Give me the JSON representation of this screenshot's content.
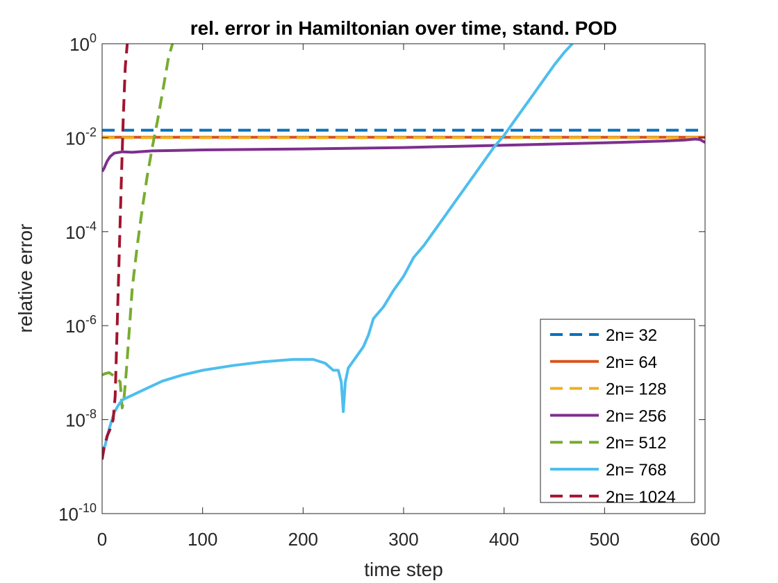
{
  "chart_data": {
    "type": "line",
    "title": "rel. error in Hamiltonian over time, stand. POD",
    "xlabel": "time step",
    "ylabel": "relative error",
    "xlim": [
      0,
      600
    ],
    "ylim_log10": [
      -10,
      0
    ],
    "yscale": "log",
    "grid": false,
    "legend_location": "bottom-right",
    "xticks": [
      {
        "value": 0,
        "label": "0"
      },
      {
        "value": 100,
        "label": "100"
      },
      {
        "value": 200,
        "label": "200"
      },
      {
        "value": 300,
        "label": "300"
      },
      {
        "value": 400,
        "label": "400"
      },
      {
        "value": 500,
        "label": "500"
      },
      {
        "value": 600,
        "label": "600"
      }
    ],
    "yticks": [
      {
        "exp": 0,
        "base": "10",
        "sup": "0"
      },
      {
        "exp": -2,
        "base": "10",
        "sup": "-2"
      },
      {
        "exp": -4,
        "base": "10",
        "sup": "-4"
      },
      {
        "exp": -6,
        "base": "10",
        "sup": "-6"
      },
      {
        "exp": -8,
        "base": "10",
        "sup": "-8"
      },
      {
        "exp": -10,
        "base": "10",
        "sup": "-10"
      }
    ],
    "series": [
      {
        "name": "2n= 32",
        "color": "#0072BD",
        "dash": true,
        "points": [
          [
            0,
            -1.84
          ],
          [
            600,
            -1.84
          ]
        ]
      },
      {
        "name": "2n= 64",
        "color": "#D95319",
        "dash": false,
        "points": [
          [
            0,
            -1.99
          ],
          [
            600,
            -1.99
          ]
        ]
      },
      {
        "name": "2n= 128",
        "color": "#EDB120",
        "dash": true,
        "points": [
          [
            0,
            -2.0
          ],
          [
            600,
            -2.0
          ]
        ]
      },
      {
        "name": "2n= 256",
        "color": "#7E2F8E",
        "dash": false,
        "points": [
          [
            0,
            -2.72
          ],
          [
            2,
            -2.65
          ],
          [
            5,
            -2.5
          ],
          [
            8,
            -2.4
          ],
          [
            12,
            -2.33
          ],
          [
            20,
            -2.3
          ],
          [
            30,
            -2.31
          ],
          [
            50,
            -2.28
          ],
          [
            100,
            -2.26
          ],
          [
            200,
            -2.24
          ],
          [
            300,
            -2.21
          ],
          [
            400,
            -2.16
          ],
          [
            500,
            -2.11
          ],
          [
            560,
            -2.07
          ],
          [
            580,
            -2.05
          ],
          [
            590,
            -2.03
          ],
          [
            595,
            -2.04
          ],
          [
            600,
            -2.1
          ]
        ]
      },
      {
        "name": "2n= 512",
        "color": "#77AC30",
        "dash": true,
        "points": [
          [
            0,
            -7.05
          ],
          [
            3,
            -7.02
          ],
          [
            7,
            -7.0
          ],
          [
            9,
            -7.03
          ],
          [
            14,
            -7.1
          ],
          [
            18,
            -7.2
          ],
          [
            20,
            -7.75
          ],
          [
            22,
            -7.5
          ],
          [
            24,
            -7.0
          ],
          [
            27,
            -6.1
          ],
          [
            30,
            -5.2
          ],
          [
            35,
            -4.3
          ],
          [
            40,
            -3.5
          ],
          [
            45,
            -2.8
          ],
          [
            50,
            -2.2
          ],
          [
            55,
            -1.65
          ],
          [
            60,
            -1.05
          ],
          [
            66,
            -0.3
          ],
          [
            70,
            0.0
          ]
        ]
      },
      {
        "name": "2n= 768",
        "color": "#4DBEEE",
        "dash": false,
        "points": [
          [
            0,
            -8.65
          ],
          [
            3,
            -8.55
          ],
          [
            7,
            -8.2
          ],
          [
            12,
            -7.85
          ],
          [
            16,
            -7.7
          ],
          [
            20,
            -7.58
          ],
          [
            30,
            -7.48
          ],
          [
            40,
            -7.38
          ],
          [
            60,
            -7.18
          ],
          [
            80,
            -7.05
          ],
          [
            100,
            -6.95
          ],
          [
            130,
            -6.85
          ],
          [
            160,
            -6.77
          ],
          [
            190,
            -6.72
          ],
          [
            210,
            -6.72
          ],
          [
            222,
            -6.8
          ],
          [
            230,
            -6.95
          ],
          [
            235,
            -6.95
          ],
          [
            238,
            -7.2
          ],
          [
            240,
            -7.83
          ],
          [
            242,
            -7.2
          ],
          [
            245,
            -6.9
          ],
          [
            250,
            -6.75
          ],
          [
            255,
            -6.6
          ],
          [
            260,
            -6.45
          ],
          [
            265,
            -6.2
          ],
          [
            270,
            -5.85
          ],
          [
            280,
            -5.6
          ],
          [
            290,
            -5.25
          ],
          [
            300,
            -4.95
          ],
          [
            310,
            -4.55
          ],
          [
            320,
            -4.3
          ],
          [
            330,
            -4.0
          ],
          [
            340,
            -3.7
          ],
          [
            350,
            -3.4
          ],
          [
            360,
            -3.1
          ],
          [
            370,
            -2.8
          ],
          [
            380,
            -2.5
          ],
          [
            390,
            -2.2
          ],
          [
            400,
            -1.95
          ],
          [
            410,
            -1.65
          ],
          [
            420,
            -1.35
          ],
          [
            430,
            -1.05
          ],
          [
            440,
            -0.75
          ],
          [
            450,
            -0.45
          ],
          [
            460,
            -0.18
          ],
          [
            468,
            0.0
          ]
        ]
      },
      {
        "name": "2n= 1024",
        "color": "#A2142F",
        "dash": true,
        "points": [
          [
            0,
            -8.85
          ],
          [
            2,
            -8.6
          ],
          [
            5,
            -8.35
          ],
          [
            8,
            -8.2
          ],
          [
            11,
            -8.0
          ],
          [
            13,
            -7.5
          ],
          [
            15,
            -6.0
          ],
          [
            17,
            -4.5
          ],
          [
            19,
            -3.0
          ],
          [
            21,
            -1.6
          ],
          [
            23,
            -0.5
          ],
          [
            25,
            0.0
          ]
        ]
      }
    ]
  }
}
